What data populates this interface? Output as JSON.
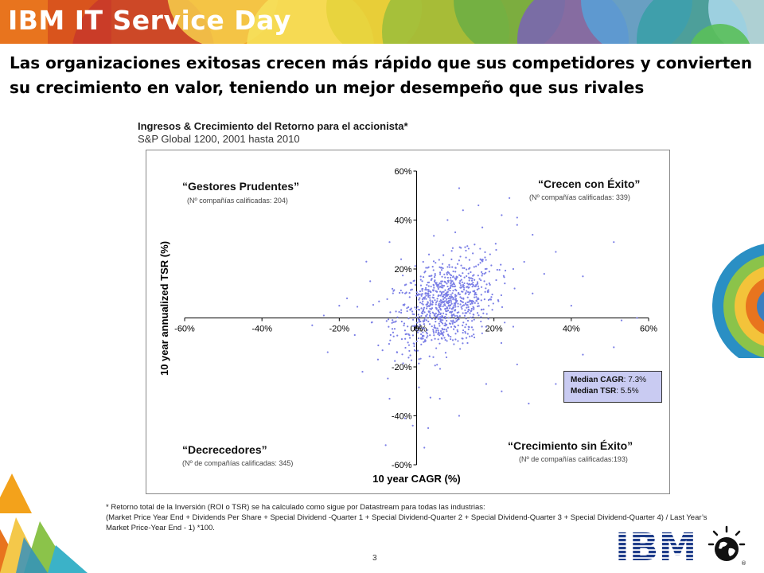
{
  "banner": {
    "title": "IBM IT Service Day"
  },
  "headline": "Las organizaciones exitosas crecen más rápido que sus competidores y convierten su crecimiento en valor, teniendo un mejor desempeño que sus rivales",
  "chart_data": {
    "type": "scatter",
    "title": "Ingresos & Crecimiento del Retorno para el  accionista*",
    "subtitle": "S&P Global 1200, 2001 hasta 2010",
    "xlabel": "10 year CAGR (%)",
    "ylabel": "10 year annualized TSR (%)",
    "xlim": [
      -60,
      60
    ],
    "ylim": [
      -60,
      60
    ],
    "xticks": [
      "-60%",
      "-40%",
      "-20%",
      "0%",
      "20%",
      "40%",
      "60%"
    ],
    "yticks": [
      "60%",
      "40%",
      "20%",
      "0%",
      "-20%",
      "-40%",
      "-60%"
    ],
    "grid": false,
    "marker_color": "#7b7fe6",
    "quadrants": [
      {
        "name": "“Gestores Prudentes”",
        "count_label": "(Nº compañías calificadas: 204)"
      },
      {
        "name": "“Crecen con Éxito”",
        "count_label": "(Nº compañías calificadas: 339)"
      },
      {
        "name": "“Decrecedores”",
        "count_label": "(Nº de compañías calificadas: 345)"
      },
      {
        "name": "“Crecimiento sin Éxito”",
        "count_label": "(Nº de compañías calificadas:193)"
      }
    ],
    "median": {
      "cagr_label": "Median CAGR",
      "cagr_value": ": 7.3%",
      "tsr_label": "Median TSR",
      "tsr_value": ": 5.5%"
    },
    "outliers": [
      [
        -7,
        31
      ],
      [
        -6,
        11
      ],
      [
        -24,
        1
      ],
      [
        -27,
        -3
      ],
      [
        -23,
        -14
      ],
      [
        -14,
        -22
      ],
      [
        -7,
        -33
      ],
      [
        -8,
        -52
      ],
      [
        -1,
        -44
      ],
      [
        6,
        -33
      ],
      [
        11,
        -40
      ],
      [
        29,
        -35
      ],
      [
        36,
        -27
      ],
      [
        43,
        -15
      ],
      [
        51,
        -12
      ],
      [
        40,
        5
      ],
      [
        53,
        -1
      ],
      [
        57,
        0
      ],
      [
        51,
        31
      ],
      [
        43,
        17
      ],
      [
        36,
        27
      ],
      [
        26,
        41
      ],
      [
        30,
        34
      ],
      [
        24,
        49
      ],
      [
        16,
        46
      ],
      [
        12,
        44
      ],
      [
        11,
        53
      ],
      [
        22,
        42
      ],
      [
        26,
        38
      ],
      [
        -3,
        -41
      ],
      [
        3,
        -45
      ],
      [
        2,
        -53
      ],
      [
        -16,
        -7
      ],
      [
        -20,
        5
      ],
      [
        -12,
        15
      ],
      [
        -13,
        23
      ],
      [
        -10,
        -17
      ],
      [
        18,
        -27
      ],
      [
        22,
        -30
      ],
      [
        26,
        -19
      ],
      [
        30,
        10
      ],
      [
        33,
        18
      ],
      [
        25,
        20
      ],
      [
        19,
        26
      ],
      [
        15,
        30
      ],
      [
        10,
        35
      ],
      [
        8,
        40
      ],
      [
        17,
        37
      ],
      [
        -4,
        24
      ],
      [
        -18,
        8
      ]
    ]
  },
  "footnote": {
    "line1": "* Retorno total de la Inversión (ROI o TSR) se ha calculado como sigue por Datastream para todas las industrias:",
    "line2": "(Market Price Year End + Dividends Per Share + Special Dividend -Quarter 1 + Special Dividend-Quarter 2 + Special Dividend-Quarter 3 + Special Dividend-Quarter 4) / Last Year’s Market Price-Year End - 1) *100."
  },
  "page_number": "3",
  "logo": {
    "text": "IBM"
  }
}
